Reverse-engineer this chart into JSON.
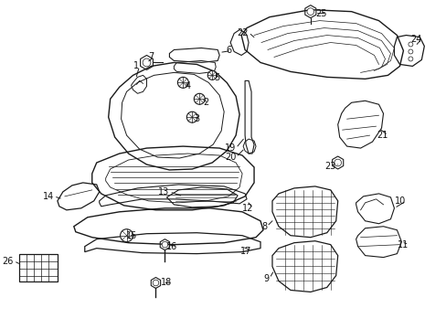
{
  "background_color": "#ffffff",
  "line_color": "#1a1a1a",
  "text_color": "#111111",
  "figsize": [
    4.89,
    3.6
  ],
  "dpi": 100,
  "label_fontsize": 7.0
}
